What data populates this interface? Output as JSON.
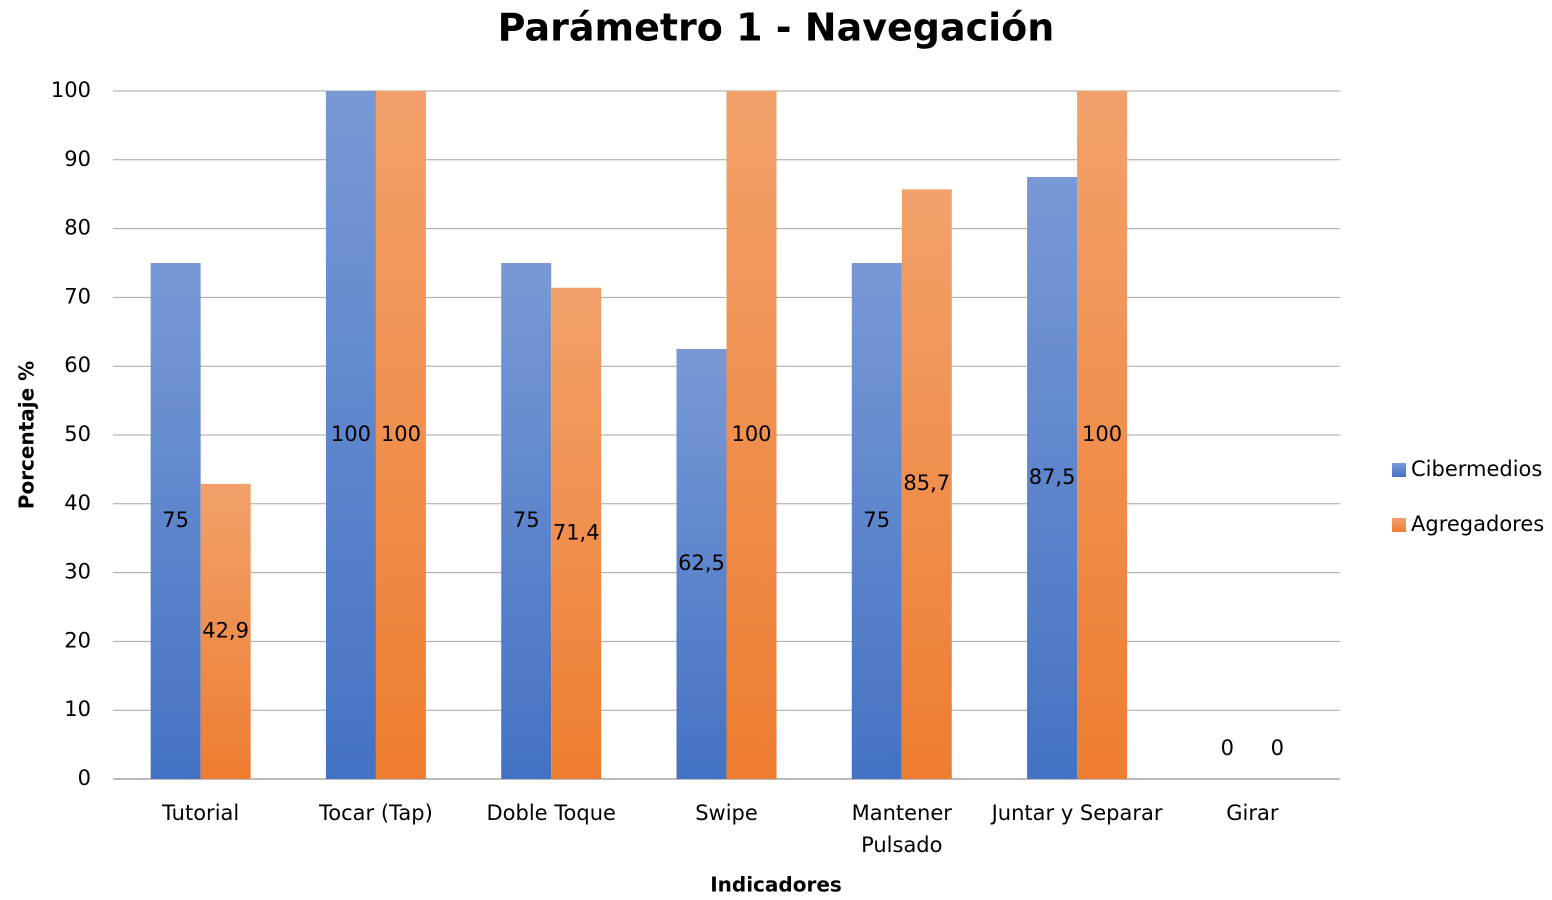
{
  "chart_data": {
    "type": "bar",
    "title": "Parámetro 1 - Navegación",
    "x_label": "Indicadores",
    "y_label": "Porcentaje %",
    "categories": [
      "Tutorial",
      "Tocar (Tap)",
      "Doble Toque",
      "Swipe",
      "Mantener\nPulsado",
      "Juntar y Separar",
      "Girar"
    ],
    "series": [
      {
        "name": "Cibermedios",
        "color": "#4472c4",
        "values": [
          75,
          100,
          75,
          62.5,
          75,
          87.5,
          0
        ],
        "value_labels": [
          "75",
          "100",
          "75",
          "62,5",
          "75",
          "87,5",
          "0"
        ]
      },
      {
        "name": "Agregadores",
        "color": "#ed7d31",
        "values": [
          42.9,
          100,
          71.4,
          100,
          85.7,
          100,
          0
        ],
        "value_labels": [
          "42,9",
          "100",
          "71,4",
          "100",
          "85,7",
          "100",
          "0"
        ]
      }
    ],
    "ylim": [
      0,
      100
    ],
    "yticks": [
      0,
      10,
      20,
      30,
      40,
      50,
      60,
      70,
      80,
      90,
      100
    ],
    "grid": true,
    "legend": "right"
  }
}
